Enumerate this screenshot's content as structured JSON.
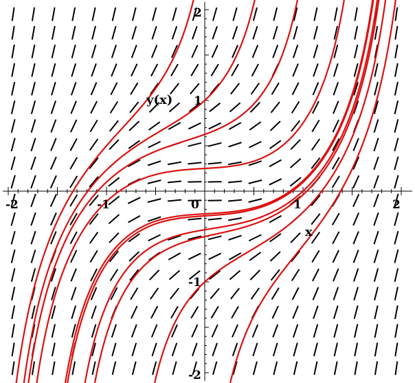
{
  "chart_data": {
    "type": "line",
    "subtype": "direction-field",
    "xlim": [
      -2,
      2
    ],
    "ylim": [
      -2,
      2
    ],
    "xlabel": "x",
    "ylabel": "y(x)",
    "x_ticks": [
      {
        "value": -2,
        "label": "-2"
      },
      {
        "value": -1,
        "label": "-1"
      },
      {
        "value": 0,
        "label": "0"
      },
      {
        "value": 1,
        "label": "1"
      },
      {
        "value": 2,
        "label": "2"
      }
    ],
    "y_ticks": [
      {
        "value": 2,
        "label": "2"
      },
      {
        "value": 1,
        "label": "1"
      },
      {
        "value": -1,
        "label": "-1"
      },
      {
        "value": -2,
        "label": "-2"
      }
    ],
    "slope_field": {
      "equation": "dy/dx = x^2 + y^2",
      "x_min": -1.95,
      "x_max": 1.95,
      "y_min": -1.95,
      "y_max": 1.95,
      "cols": 20,
      "rows": 20,
      "color": "#000000"
    },
    "solution_color": "#dd1010",
    "solutions": [
      {
        "x0": 0,
        "y0": 1
      },
      {
        "x0": 0,
        "y0": 0.25
      },
      {
        "x0": 0,
        "y0": -0.25
      },
      {
        "x0": 0,
        "y0": -0.5
      },
      {
        "x0": 0,
        "y0": -1
      },
      {
        "x0": 1,
        "y0": 0
      },
      {
        "x0": 1,
        "y0": -0.6
      },
      {
        "x0": -1,
        "y0": 0.1
      },
      {
        "x0": -1,
        "y0": 0.5
      },
      {
        "x0": -1,
        "y0": -0.8
      }
    ],
    "grid": false,
    "legend": false
  }
}
